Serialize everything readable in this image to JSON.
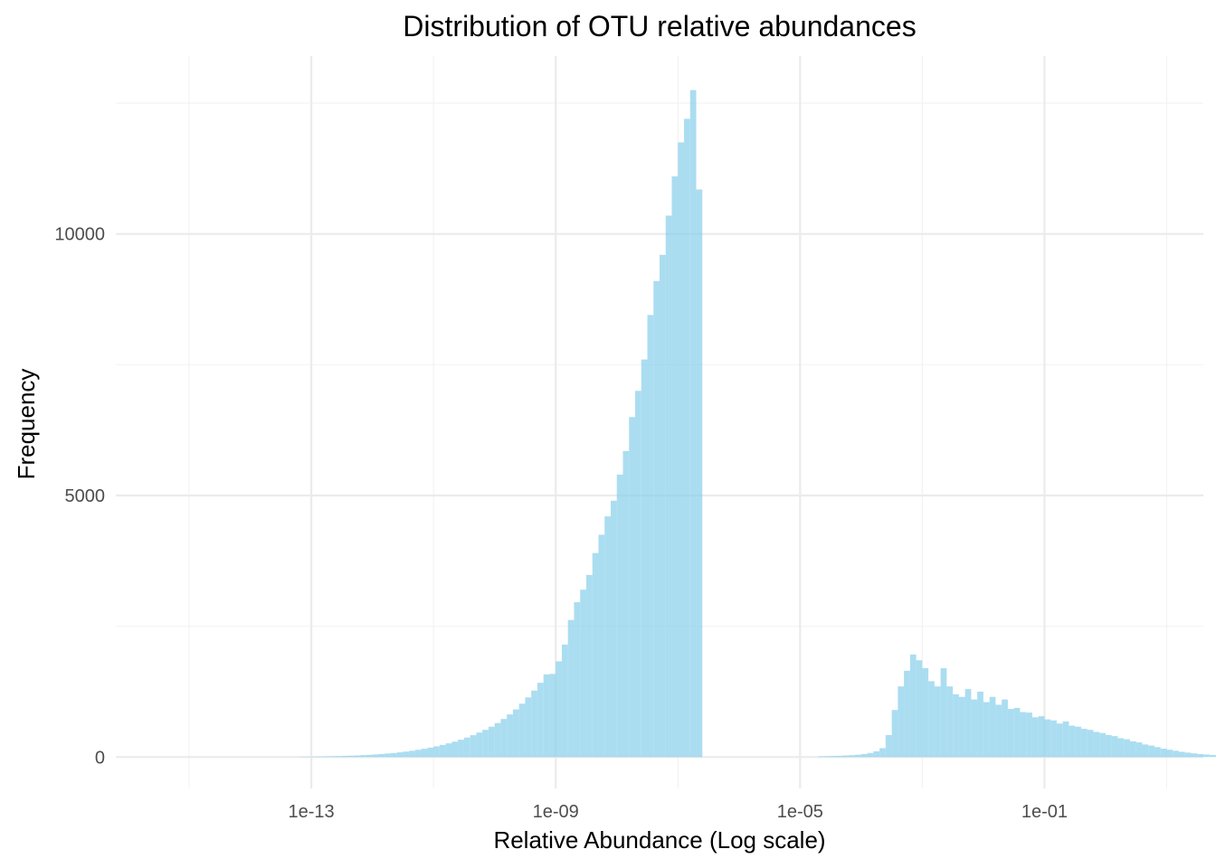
{
  "chart_data": {
    "type": "histogram",
    "title": "Distribution of OTU relative abundances",
    "xlabel": "Relative Abundance (Log scale)",
    "ylabel": "Frequency",
    "x_scale": "log10",
    "x_ticks": [
      {
        "value": 1e-13,
        "label": "1e-13"
      },
      {
        "value": 1e-09,
        "label": "1e-09"
      },
      {
        "value": 1e-05,
        "label": "1e-05"
      },
      {
        "value": 0.1,
        "label": "1e-01"
      }
    ],
    "y_ticks": [
      {
        "value": 0,
        "label": "0"
      },
      {
        "value": 5000,
        "label": "5000"
      },
      {
        "value": 10000,
        "label": "10000"
      }
    ],
    "xlim_log10": [
      -16.2,
      1.6
    ],
    "ylim": [
      -600,
      13400
    ],
    "bar_color": "#87CEEB",
    "bar_opacity": 0.7,
    "grid": true,
    "bins": {
      "width_log10": 0.1,
      "cluster_1": {
        "start_log10": -13.2,
        "counts": [
          4,
          6,
          8,
          10,
          12,
          15,
          18,
          22,
          26,
          30,
          36,
          42,
          50,
          58,
          68,
          78,
          90,
          104,
          120,
          138,
          158,
          180,
          205,
          232,
          262,
          295,
          332,
          372,
          418,
          468,
          520,
          580,
          650,
          728,
          815,
          910,
          1020,
          1140,
          1270,
          1420,
          1580,
          1590,
          1830,
          2150,
          2620,
          2960,
          3200,
          3480,
          3900,
          4250,
          4600,
          4900,
          5400,
          5850,
          6500,
          7000,
          7600,
          8450,
          9100,
          9600,
          10350,
          11100,
          11750,
          12200,
          12750,
          10850
        ]
      },
      "cluster_2": {
        "start_log10": -4.7,
        "counts": [
          12,
          16,
          20,
          24,
          30,
          36,
          45,
          58,
          78,
          110,
          170,
          420,
          900,
          1350,
          1650,
          1960,
          1850,
          1700,
          1450,
          1350,
          1700,
          1350,
          1200,
          1150,
          1300,
          1100,
          1250,
          1050,
          1150,
          1000,
          1100,
          920,
          940,
          860,
          850,
          760,
          780,
          720,
          700,
          640,
          680,
          600,
          580,
          540,
          520,
          480,
          460,
          420,
          400,
          360,
          340,
          300,
          280,
          240,
          220,
          190,
          160,
          140,
          120,
          100,
          85,
          70,
          58,
          48,
          40,
          32,
          25,
          18,
          12,
          7
        ]
      }
    }
  }
}
